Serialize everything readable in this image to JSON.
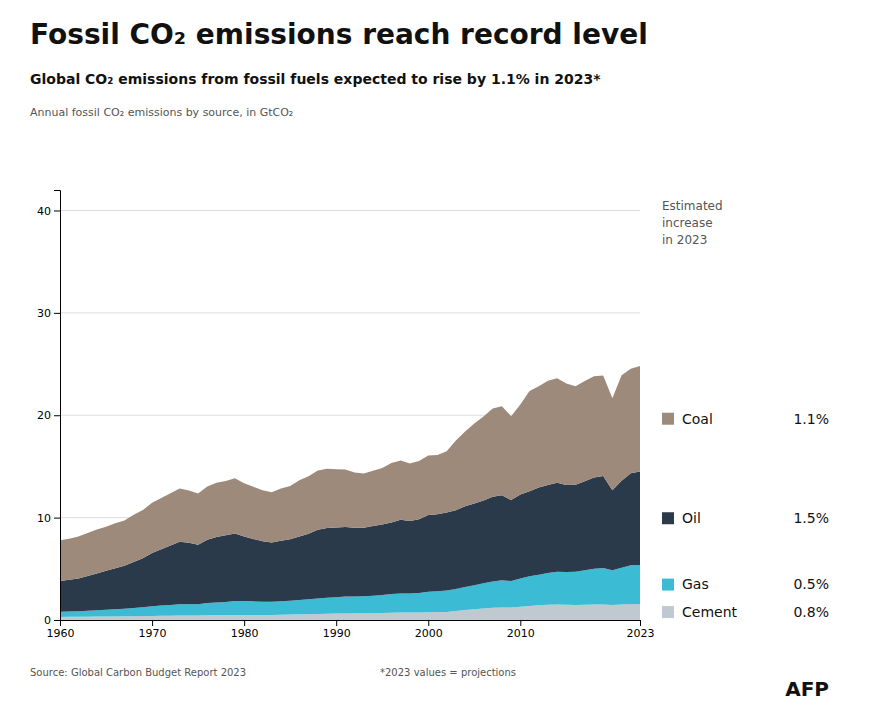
{
  "chart_data": {
    "type": "area",
    "stacked": true,
    "grid": true,
    "title": "Fossil CO₂ emissions reach record level",
    "subtitle": "Global CO₂ emissions from fossil fuels expected to rise by 1.1% in 2023*",
    "ylabel": "Annual fossil CO₂ emissions by source, in GtCO₂",
    "annotations": [
      "Estimated\nincrease\nin 2023",
      "Source: Global Carbon Budget Report 2023",
      "*2023 values = projections",
      "AFP"
    ],
    "x": [
      1960,
      1961,
      1962,
      1963,
      1964,
      1965,
      1966,
      1967,
      1968,
      1969,
      1970,
      1971,
      1972,
      1973,
      1974,
      1975,
      1976,
      1977,
      1978,
      1979,
      1980,
      1981,
      1982,
      1983,
      1984,
      1985,
      1986,
      1987,
      1988,
      1989,
      1990,
      1991,
      1992,
      1993,
      1994,
      1995,
      1996,
      1997,
      1998,
      1999,
      2000,
      2001,
      2002,
      2003,
      2004,
      2005,
      2006,
      2007,
      2008,
      2009,
      2010,
      2011,
      2012,
      2013,
      2014,
      2015,
      2016,
      2017,
      2018,
      2019,
      2020,
      2021,
      2022,
      2023
    ],
    "series": [
      {
        "name": "Cement",
        "color": "#c0c8d0",
        "increase": {
          "value": 0.8,
          "label": "0.8%"
        },
        "values": [
          0.3,
          0.31,
          0.31,
          0.32,
          0.33,
          0.34,
          0.35,
          0.36,
          0.37,
          0.38,
          0.4,
          0.41,
          0.42,
          0.44,
          0.44,
          0.45,
          0.47,
          0.48,
          0.49,
          0.5,
          0.5,
          0.5,
          0.5,
          0.5,
          0.52,
          0.53,
          0.55,
          0.57,
          0.59,
          0.61,
          0.63,
          0.64,
          0.65,
          0.66,
          0.67,
          0.69,
          0.71,
          0.73,
          0.73,
          0.74,
          0.76,
          0.77,
          0.79,
          0.88,
          0.97,
          1.04,
          1.13,
          1.2,
          1.23,
          1.21,
          1.3,
          1.37,
          1.43,
          1.48,
          1.51,
          1.49,
          1.47,
          1.5,
          1.51,
          1.52,
          1.47,
          1.51,
          1.54,
          1.55
        ]
      },
      {
        "name": "Gas",
        "color": "#3bbcd4",
        "increase": {
          "value": 0.5,
          "label": "0.5%"
        },
        "values": [
          0.5,
          0.52,
          0.55,
          0.58,
          0.62,
          0.66,
          0.71,
          0.75,
          0.8,
          0.86,
          0.95,
          1.0,
          1.05,
          1.1,
          1.1,
          1.1,
          1.18,
          1.22,
          1.28,
          1.35,
          1.35,
          1.32,
          1.28,
          1.28,
          1.32,
          1.36,
          1.4,
          1.46,
          1.52,
          1.57,
          1.6,
          1.65,
          1.65,
          1.66,
          1.7,
          1.75,
          1.82,
          1.86,
          1.85,
          1.9,
          2.0,
          2.05,
          2.1,
          2.15,
          2.25,
          2.35,
          2.45,
          2.55,
          2.65,
          2.6,
          2.75,
          2.9,
          3.0,
          3.1,
          3.2,
          3.2,
          3.25,
          3.35,
          3.5,
          3.55,
          3.4,
          3.6,
          3.8,
          3.82
        ]
      },
      {
        "name": "Oil",
        "color": "#2a3a4a",
        "increase": {
          "value": 1.5,
          "label": "1.5%"
        },
        "values": [
          3.0,
          3.1,
          3.2,
          3.4,
          3.6,
          3.8,
          4.0,
          4.2,
          4.5,
          4.8,
          5.2,
          5.5,
          5.8,
          6.1,
          6.0,
          5.8,
          6.2,
          6.4,
          6.5,
          6.6,
          6.3,
          6.1,
          5.9,
          5.8,
          5.9,
          6.0,
          6.2,
          6.4,
          6.7,
          6.8,
          6.8,
          6.8,
          6.7,
          6.7,
          6.8,
          6.9,
          7.0,
          7.2,
          7.1,
          7.2,
          7.5,
          7.5,
          7.6,
          7.7,
          7.9,
          8.0,
          8.1,
          8.3,
          8.3,
          7.9,
          8.2,
          8.3,
          8.5,
          8.6,
          8.7,
          8.5,
          8.5,
          8.7,
          8.9,
          9.0,
          7.8,
          8.5,
          9.0,
          9.14
        ]
      },
      {
        "name": "Coal",
        "color": "#9e8a7a",
        "increase": {
          "value": 1.1,
          "label": "1.1%"
        },
        "values": [
          4.0,
          4.0,
          4.1,
          4.2,
          4.3,
          4.3,
          4.4,
          4.4,
          4.6,
          4.7,
          4.9,
          5.0,
          5.1,
          5.2,
          5.1,
          5.0,
          5.2,
          5.3,
          5.3,
          5.4,
          5.2,
          5.1,
          5.0,
          4.9,
          5.1,
          5.2,
          5.5,
          5.6,
          5.8,
          5.8,
          5.7,
          5.6,
          5.4,
          5.3,
          5.4,
          5.5,
          5.8,
          5.8,
          5.6,
          5.7,
          5.8,
          5.8,
          6.0,
          6.8,
          7.3,
          7.8,
          8.2,
          8.6,
          8.7,
          8.2,
          8.8,
          9.8,
          9.9,
          10.2,
          10.2,
          9.9,
          9.6,
          9.8,
          9.9,
          9.8,
          9.0,
          10.3,
          10.2,
          10.3
        ]
      }
    ],
    "xlim": [
      1960,
      2023
    ],
    "xticks": [
      1960,
      1970,
      1980,
      1990,
      2000,
      2010,
      2023
    ],
    "ylim": [
      0,
      42
    ],
    "yticks": [
      0,
      10,
      20,
      30,
      40
    ]
  }
}
